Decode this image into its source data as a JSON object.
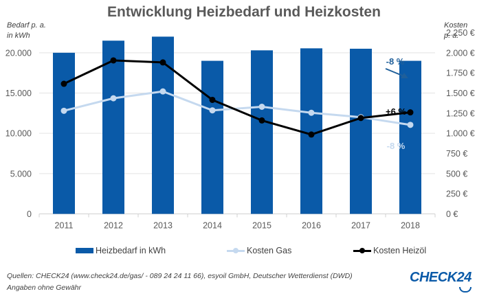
{
  "title": "Entwicklung Heizbedarf und Heizkosten",
  "left_axis_title": [
    "Bedarf p. a.",
    "in kWh"
  ],
  "right_axis_title": [
    "Kosten",
    "p. a."
  ],
  "chart_data": {
    "type": "bar",
    "title": "Entwicklung Heizbedarf und Heizkosten",
    "categories": [
      "2011",
      "2012",
      "2013",
      "2014",
      "2015",
      "2016",
      "2017",
      "2018"
    ],
    "series": [
      {
        "name": "Heizbedarf in kWh",
        "type": "bar",
        "axis": "left",
        "color": "#0a5aa8",
        "values": [
          20000,
          21500,
          22000,
          19000,
          20300,
          20550,
          20500,
          19000
        ]
      },
      {
        "name": "Kosten Gas",
        "type": "line",
        "axis": "right",
        "color": "#c5d9ef",
        "values": [
          1280,
          1435,
          1520,
          1285,
          1330,
          1255,
          1200,
          1105
        ]
      },
      {
        "name": "Kosten Heizöl",
        "type": "line",
        "axis": "right",
        "color": "#000000",
        "values": [
          1615,
          1905,
          1880,
          1415,
          1160,
          985,
          1190,
          1260
        ]
      }
    ],
    "ylabel": "Bedarf p. a. in kWh",
    "y2label": "Kosten p. a.",
    "ylim": [
      0,
      22500
    ],
    "y2lim": [
      0,
      2250
    ],
    "yticks": [
      "0",
      "5.000",
      "10.000",
      "15.000",
      "20.000"
    ],
    "yticks_values": [
      0,
      5000,
      10000,
      15000,
      20000
    ],
    "y2ticks": [
      "0 €",
      "250 €",
      "500 €",
      "750 €",
      "1.000 €",
      "1.250 €",
      "1.500 €",
      "1.750 €",
      "2.000 €",
      "2.250 €"
    ],
    "y2ticks_values": [
      0,
      250,
      500,
      750,
      1000,
      1250,
      1500,
      1750,
      2000,
      2250
    ],
    "grid": true,
    "legend": "bottom",
    "annotations": [
      {
        "text": "-8 %",
        "series": "Heizbedarf in kWh",
        "color": "#1f5f9a",
        "arrow": true
      },
      {
        "text": "+6 %",
        "series": "Kosten Heizöl",
        "color": "#000000"
      },
      {
        "text": "-8 %",
        "series": "Kosten Gas",
        "color": "#c5d9ef"
      }
    ]
  },
  "footer": {
    "sources": "Quellen: CHECK24 (www.check24.de/gas/ - 089 24 24 11 66), esyoil GmbH, Deutscher Wetterdienst (DWD)",
    "disclaimer": "Angaben ohne Gewähr"
  },
  "logo": "CHECK24"
}
